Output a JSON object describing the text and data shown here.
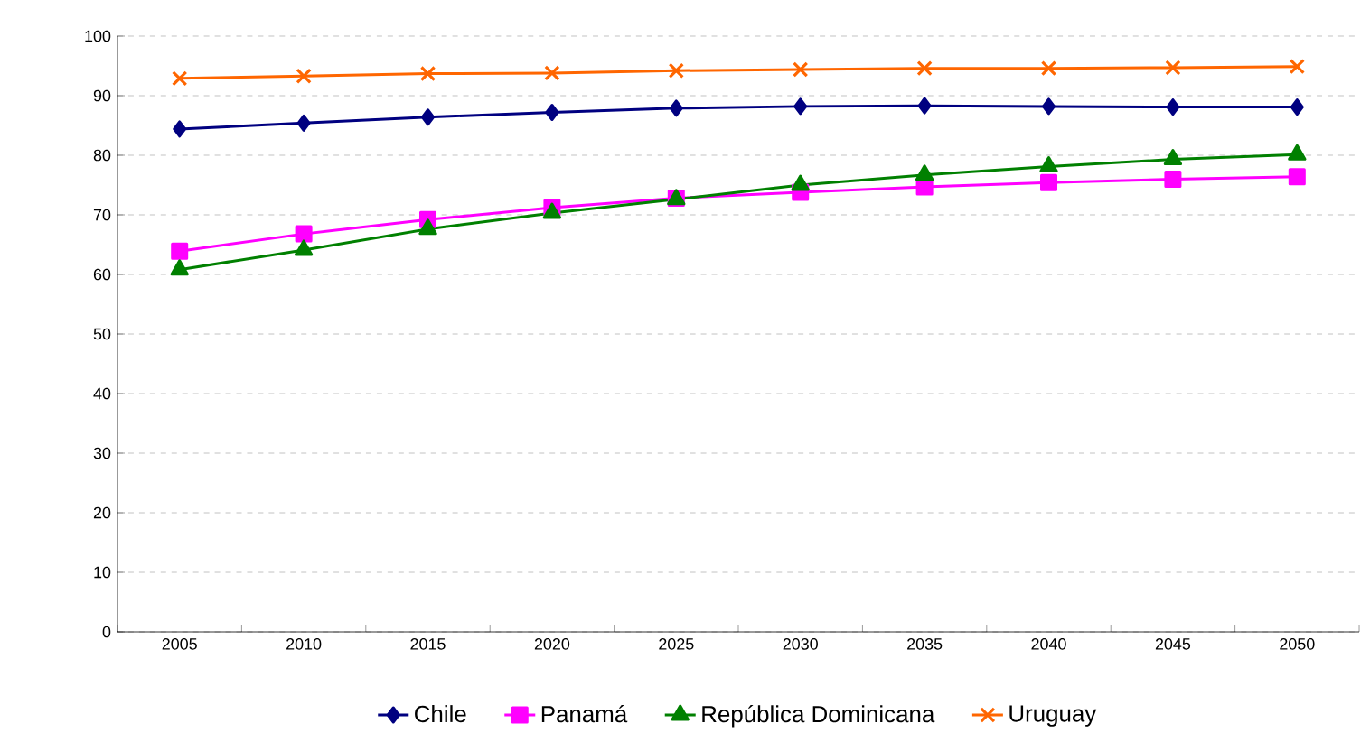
{
  "chart_data": {
    "type": "line",
    "categories": [
      "2005",
      "2010",
      "2015",
      "2020",
      "2025",
      "2030",
      "2035",
      "2040",
      "2045",
      "2050"
    ],
    "ylim": [
      0,
      100
    ],
    "yticks": [
      0,
      10,
      20,
      30,
      40,
      50,
      60,
      70,
      80,
      90,
      100
    ],
    "grid": "y",
    "legend": "bottom",
    "line_style": "solid",
    "series": [
      {
        "name": "Chile",
        "color": "#000080",
        "marker": "diamond",
        "values": [
          84.4,
          85.4,
          86.4,
          87.2,
          87.9,
          88.2,
          88.3,
          88.2,
          88.1,
          88.1
        ]
      },
      {
        "name": "Panamá",
        "color": "#ff00ff",
        "marker": "square",
        "values": [
          63.9,
          66.8,
          69.2,
          71.2,
          72.8,
          73.8,
          74.7,
          75.4,
          76.0,
          76.4
        ]
      },
      {
        "name": "República Dominicana",
        "color": "#008000",
        "marker": "triangle",
        "values": [
          60.8,
          64.1,
          67.6,
          70.3,
          72.6,
          75.0,
          76.7,
          78.1,
          79.3,
          80.1
        ]
      },
      {
        "name": "Uruguay",
        "color": "#ff6600",
        "marker": "cross",
        "values": [
          92.9,
          93.3,
          93.7,
          93.8,
          94.2,
          94.4,
          94.6,
          94.6,
          94.7,
          94.9
        ]
      }
    ]
  }
}
